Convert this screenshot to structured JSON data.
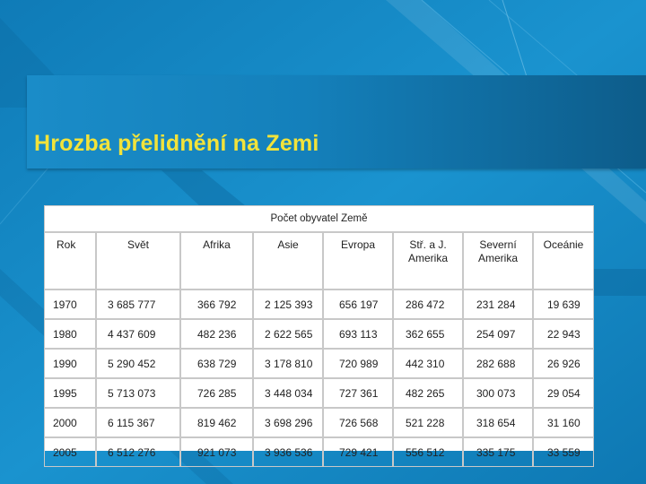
{
  "slide": {
    "title": "Hrozba přelidnění na Zemi"
  },
  "table": {
    "caption": "Počet obyvatel Země",
    "headers": [
      "Rok",
      "Svět",
      "Afrika",
      "Asie",
      "Evropa",
      "Stř. a J.\nAmerika",
      "Severní\nAmerika",
      "Oceánie"
    ],
    "rows": [
      [
        "1970",
        "3 685 777",
        "366 792",
        "2 125 393",
        "656 197",
        "286 472",
        "231 284",
        "19 639"
      ],
      [
        "1980",
        "4 437 609",
        "482 236",
        "2 622 565",
        "693 113",
        "362 655",
        "254 097",
        "22 943"
      ],
      [
        "1990",
        "5 290 452",
        "638 729",
        "3 178 810",
        "720 989",
        "442 310",
        "282 688",
        "26 926"
      ],
      [
        "1995",
        "5 713 073",
        "726 285",
        "3 448 034",
        "727 361",
        "482 265",
        "300 073",
        "29 054"
      ],
      [
        "2000",
        "6 115 367",
        "819 462",
        "3 698 296",
        "726 568",
        "521 228",
        "318 654",
        "31 160"
      ],
      [
        "2005",
        "6 512 276",
        "921 073",
        "3 936 536",
        "729 421",
        "556 512",
        "335 175",
        "33 559"
      ]
    ]
  },
  "colors": {
    "background": "#1386c2",
    "title_text": "#f2e33a",
    "table_bg": "#ffffff",
    "table_border": "#c8c8c8"
  }
}
